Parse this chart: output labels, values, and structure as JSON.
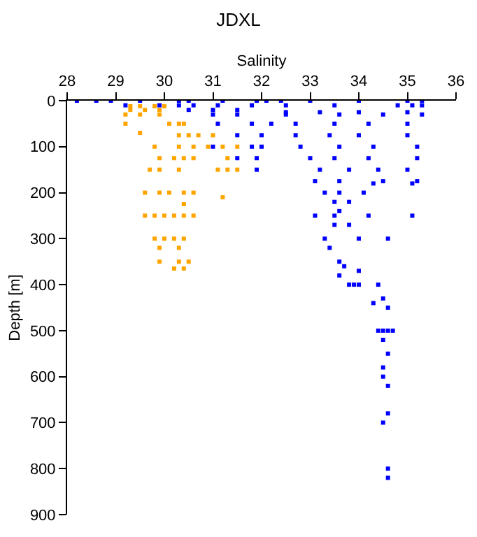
{
  "chart_data": {
    "type": "scatter",
    "title": "JDXL",
    "xlabel": "Salinity",
    "ylabel": "Depth [m]",
    "xlim": [
      28,
      36
    ],
    "xticks": [
      28,
      29,
      30,
      31,
      32,
      33,
      34,
      35,
      36
    ],
    "ylim": [
      900,
      0
    ],
    "yticks": [
      0,
      100,
      200,
      300,
      400,
      500,
      600,
      700,
      800,
      900
    ],
    "marker": "square",
    "series": [
      {
        "color": "#ffa500",
        "x": [
          29.3,
          29.5,
          29.8,
          30.0,
          29.3,
          29.6,
          29.9,
          29.2,
          29.5,
          29.9,
          29.2,
          30.1,
          30.3,
          30.4,
          29.5,
          30.3,
          30.5,
          30.7,
          31.0,
          29.8,
          30.3,
          30.6,
          30.9,
          31.2,
          31.5,
          29.9,
          30.2,
          30.4,
          30.6,
          31.3,
          29.7,
          29.9,
          30.3,
          31.1,
          31.3,
          31.5,
          29.6,
          29.9,
          30.1,
          30.4,
          30.6,
          31.2,
          30.4,
          29.6,
          29.8,
          30.0,
          30.2,
          30.4,
          30.6,
          29.8,
          30.0,
          30.2,
          30.4,
          29.9,
          30.3,
          29.9,
          30.3,
          30.5,
          30.2,
          30.4
        ],
        "values": [
          12,
          12,
          12,
          12,
          20,
          20,
          20,
          30,
          30,
          30,
          50,
          50,
          50,
          50,
          70,
          75,
          75,
          75,
          75,
          100,
          100,
          100,
          100,
          100,
          100,
          125,
          125,
          125,
          125,
          125,
          150,
          150,
          150,
          150,
          150,
          150,
          200,
          200,
          200,
          200,
          200,
          210,
          225,
          250,
          250,
          250,
          250,
          250,
          250,
          300,
          300,
          300,
          300,
          320,
          320,
          350,
          350,
          350,
          365,
          365
        ]
      },
      {
        "color": "#0000ff",
        "x": [
          28.2,
          28.6,
          28.9,
          29.5,
          30.3,
          30.5,
          31.2,
          31.9,
          32.1,
          32.4,
          33.0,
          34.0,
          35.0,
          35.3,
          29.2,
          29.9,
          30.3,
          30.6,
          31.1,
          31.8,
          32.5,
          33.5,
          34.8,
          35.1,
          35.3,
          30.5,
          31.0,
          31.5,
          32.5,
          33.2,
          34.0,
          35.0,
          31.0,
          31.5,
          32.5,
          33.6,
          34.5,
          35.3,
          31.1,
          31.8,
          32.2,
          32.7,
          33.5,
          34.2,
          35.0,
          31.5,
          32.0,
          32.7,
          33.4,
          34.0,
          35.0,
          31.0,
          31.8,
          32.0,
          32.8,
          33.6,
          34.3,
          35.2,
          31.5,
          31.9,
          33.0,
          33.5,
          34.2,
          35.2,
          31.9,
          33.2,
          33.8,
          34.4,
          35.0,
          33.1,
          33.6,
          34.5,
          35.2,
          34.3,
          35.1,
          33.3,
          33.6,
          34.1,
          33.5,
          33.8,
          33.6,
          33.1,
          33.5,
          34.2,
          35.1,
          33.5,
          33.8,
          33.3,
          34.0,
          34.6,
          33.4,
          33.6,
          33.7,
          34.0,
          33.6,
          33.8,
          33.9,
          34.4,
          34.0,
          34.5,
          34.3,
          34.6,
          34.5,
          34.4,
          34.6,
          34.7,
          34.5,
          34.6,
          34.5,
          34.5,
          34.6,
          34.6,
          34.5,
          34.6,
          34.6
        ],
        "values": [
          0,
          0,
          0,
          0,
          0,
          0,
          0,
          0,
          0,
          0,
          0,
          0,
          0,
          0,
          10,
          10,
          10,
          10,
          10,
          10,
          10,
          10,
          10,
          10,
          10,
          20,
          20,
          20,
          25,
          25,
          25,
          25,
          30,
          30,
          30,
          30,
          30,
          30,
          50,
          50,
          50,
          50,
          50,
          50,
          50,
          75,
          75,
          75,
          75,
          75,
          75,
          100,
          100,
          100,
          100,
          100,
          100,
          100,
          125,
          125,
          125,
          125,
          125,
          125,
          150,
          150,
          150,
          150,
          150,
          175,
          175,
          175,
          175,
          180,
          180,
          200,
          200,
          200,
          220,
          220,
          240,
          250,
          250,
          250,
          250,
          270,
          270,
          300,
          300,
          300,
          320,
          350,
          360,
          370,
          380,
          400,
          400,
          400,
          400,
          430,
          440,
          450,
          500,
          500,
          500,
          500,
          520,
          550,
          580,
          600,
          620,
          680,
          700,
          800,
          820
        ]
      }
    ]
  }
}
